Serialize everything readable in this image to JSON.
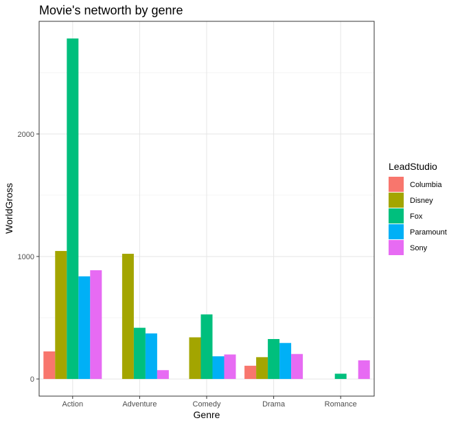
{
  "chart_data": {
    "type": "bar",
    "title": "Movie's networth by genre",
    "xlabel": "Genre",
    "ylabel": "WorldGross",
    "categories": [
      "Action",
      "Adventure",
      "Comedy",
      "Drama",
      "Romance"
    ],
    "y_ticks": [
      0,
      1000,
      2000
    ],
    "ylim": [
      -140,
      2920
    ],
    "grid": true,
    "legend": {
      "title": "LeadStudio",
      "placement": "right"
    },
    "series": [
      {
        "name": "Columbia",
        "color": "#F8766D",
        "values": [
          225,
          null,
          null,
          108,
          null
        ]
      },
      {
        "name": "Disney",
        "color": "#A3A500",
        "values": [
          1045,
          1022,
          340,
          178,
          null
        ]
      },
      {
        "name": "Fox",
        "color": "#00BF7D",
        "values": [
          2780,
          418,
          527,
          326,
          43
        ]
      },
      {
        "name": "Paramount",
        "color": "#00B0F6",
        "values": [
          838,
          372,
          185,
          294,
          null
        ]
      },
      {
        "name": "Sony",
        "color": "#E76BF3",
        "values": [
          888,
          72,
          200,
          204,
          152
        ]
      }
    ]
  }
}
